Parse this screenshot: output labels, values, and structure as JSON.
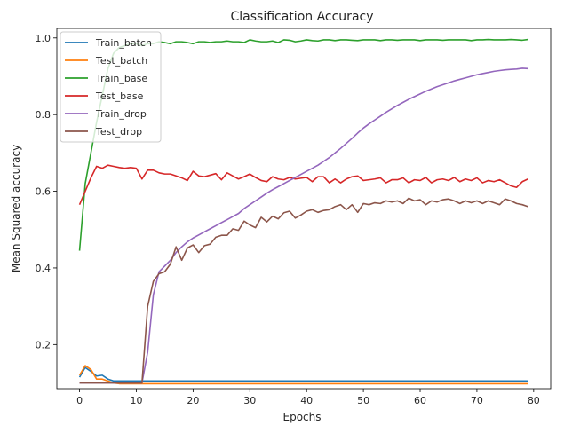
{
  "chart_data": {
    "type": "line",
    "title": "Classification Accuracy",
    "xlabel": "Epochs",
    "ylabel": "Mean Squared accuracy",
    "xlim": [
      -4,
      83
    ],
    "ylim": [
      0.085,
      1.025
    ],
    "xticks": [
      0,
      10,
      20,
      30,
      40,
      50,
      60,
      70,
      80
    ],
    "yticks": [
      0.2,
      0.4,
      0.6,
      0.8,
      1.0
    ],
    "ytick_labels": [
      "0.2",
      "0.4",
      "0.6",
      "0.8",
      "1.0"
    ],
    "legend_position": "upper-left",
    "grid": false,
    "series": [
      {
        "name": "Train_batch",
        "color": "#1f77b4",
        "values": [
          0.115,
          0.14,
          0.13,
          0.118,
          0.12,
          0.11,
          0.105,
          0.105,
          0.105,
          0.105,
          0.105,
          0.105,
          0.105,
          0.105,
          0.105,
          0.105,
          0.105,
          0.105,
          0.105,
          0.105,
          0.105,
          0.105,
          0.105,
          0.105,
          0.105,
          0.105,
          0.105,
          0.105,
          0.105,
          0.105,
          0.105,
          0.105,
          0.105,
          0.105,
          0.105,
          0.105,
          0.105,
          0.105,
          0.105,
          0.105,
          0.105,
          0.105,
          0.105,
          0.105,
          0.105,
          0.105,
          0.105,
          0.105,
          0.105,
          0.105,
          0.105,
          0.105,
          0.105,
          0.105,
          0.105,
          0.105,
          0.105,
          0.105,
          0.105,
          0.105,
          0.105,
          0.105,
          0.105,
          0.105,
          0.105,
          0.105,
          0.105,
          0.105,
          0.105,
          0.105,
          0.105,
          0.105,
          0.105,
          0.105,
          0.105,
          0.105,
          0.105,
          0.105,
          0.105,
          0.105
        ]
      },
      {
        "name": "Test_batch",
        "color": "#ff7f0e",
        "values": [
          0.12,
          0.145,
          0.135,
          0.11,
          0.11,
          0.105,
          0.1,
          0.098,
          0.098,
          0.098,
          0.098,
          0.098,
          0.098,
          0.098,
          0.098,
          0.098,
          0.098,
          0.098,
          0.098,
          0.098,
          0.098,
          0.098,
          0.098,
          0.098,
          0.098,
          0.098,
          0.098,
          0.098,
          0.098,
          0.098,
          0.098,
          0.098,
          0.098,
          0.098,
          0.098,
          0.098,
          0.098,
          0.098,
          0.098,
          0.098,
          0.098,
          0.098,
          0.098,
          0.098,
          0.098,
          0.098,
          0.098,
          0.098,
          0.098,
          0.098,
          0.098,
          0.098,
          0.098,
          0.098,
          0.098,
          0.098,
          0.098,
          0.098,
          0.098,
          0.098,
          0.098,
          0.098,
          0.098,
          0.098,
          0.098,
          0.098,
          0.098,
          0.098,
          0.098,
          0.098,
          0.098,
          0.098,
          0.098,
          0.098,
          0.098,
          0.098,
          0.098,
          0.098,
          0.098,
          0.098
        ]
      },
      {
        "name": "Train_base",
        "color": "#2ca02c",
        "values": [
          0.445,
          0.62,
          0.7,
          0.78,
          0.85,
          0.92,
          0.96,
          0.975,
          0.98,
          0.985,
          0.985,
          0.98,
          0.985,
          0.985,
          0.99,
          0.988,
          0.985,
          0.99,
          0.99,
          0.988,
          0.985,
          0.99,
          0.99,
          0.988,
          0.99,
          0.99,
          0.992,
          0.99,
          0.99,
          0.988,
          0.995,
          0.992,
          0.99,
          0.99,
          0.992,
          0.988,
          0.995,
          0.994,
          0.99,
          0.992,
          0.995,
          0.993,
          0.992,
          0.995,
          0.995,
          0.993,
          0.995,
          0.995,
          0.994,
          0.993,
          0.995,
          0.995,
          0.995,
          0.993,
          0.995,
          0.995,
          0.994,
          0.995,
          0.995,
          0.995,
          0.993,
          0.995,
          0.995,
          0.995,
          0.994,
          0.995,
          0.995,
          0.995,
          0.995,
          0.993,
          0.995,
          0.995,
          0.996,
          0.995,
          0.995,
          0.995,
          0.996,
          0.995,
          0.994,
          0.996
        ]
      },
      {
        "name": "Test_base",
        "color": "#d62728",
        "values": [
          0.565,
          0.6,
          0.635,
          0.665,
          0.66,
          0.668,
          0.665,
          0.662,
          0.66,
          0.662,
          0.66,
          0.632,
          0.655,
          0.655,
          0.648,
          0.645,
          0.645,
          0.64,
          0.635,
          0.628,
          0.652,
          0.64,
          0.638,
          0.642,
          0.646,
          0.63,
          0.648,
          0.64,
          0.632,
          0.638,
          0.645,
          0.636,
          0.628,
          0.625,
          0.638,
          0.632,
          0.63,
          0.636,
          0.632,
          0.634,
          0.636,
          0.625,
          0.638,
          0.638,
          0.622,
          0.632,
          0.622,
          0.632,
          0.638,
          0.64,
          0.628,
          0.63,
          0.632,
          0.635,
          0.622,
          0.63,
          0.63,
          0.635,
          0.622,
          0.63,
          0.628,
          0.636,
          0.622,
          0.63,
          0.632,
          0.628,
          0.636,
          0.625,
          0.632,
          0.628,
          0.635,
          0.622,
          0.628,
          0.625,
          0.63,
          0.622,
          0.614,
          0.61,
          0.625,
          0.632
        ]
      },
      {
        "name": "Train_drop",
        "color": "#9467bd",
        "values": [
          0.1,
          0.1,
          0.1,
          0.1,
          0.1,
          0.1,
          0.1,
          0.1,
          0.1,
          0.1,
          0.1,
          0.1,
          0.18,
          0.33,
          0.39,
          0.405,
          0.42,
          0.44,
          0.455,
          0.468,
          0.478,
          0.486,
          0.494,
          0.502,
          0.51,
          0.518,
          0.526,
          0.534,
          0.542,
          0.555,
          0.565,
          0.575,
          0.585,
          0.595,
          0.604,
          0.612,
          0.62,
          0.628,
          0.636,
          0.644,
          0.652,
          0.66,
          0.668,
          0.678,
          0.688,
          0.7,
          0.712,
          0.725,
          0.738,
          0.752,
          0.765,
          0.776,
          0.786,
          0.796,
          0.806,
          0.815,
          0.824,
          0.832,
          0.84,
          0.847,
          0.854,
          0.861,
          0.867,
          0.873,
          0.878,
          0.883,
          0.888,
          0.892,
          0.896,
          0.9,
          0.904,
          0.907,
          0.91,
          0.913,
          0.915,
          0.917,
          0.918,
          0.919,
          0.921,
          0.92
        ]
      },
      {
        "name": "Test_drop",
        "color": "#8c564b",
        "values": [
          0.1,
          0.1,
          0.1,
          0.1,
          0.1,
          0.1,
          0.1,
          0.1,
          0.1,
          0.1,
          0.1,
          0.1,
          0.3,
          0.365,
          0.385,
          0.39,
          0.41,
          0.455,
          0.42,
          0.452,
          0.46,
          0.44,
          0.458,
          0.462,
          0.48,
          0.485,
          0.485,
          0.502,
          0.498,
          0.522,
          0.512,
          0.505,
          0.532,
          0.52,
          0.535,
          0.528,
          0.544,
          0.548,
          0.53,
          0.538,
          0.548,
          0.552,
          0.545,
          0.55,
          0.552,
          0.56,
          0.565,
          0.552,
          0.565,
          0.545,
          0.568,
          0.565,
          0.57,
          0.568,
          0.575,
          0.572,
          0.575,
          0.568,
          0.582,
          0.575,
          0.578,
          0.565,
          0.575,
          0.572,
          0.578,
          0.58,
          0.575,
          0.568,
          0.575,
          0.57,
          0.575,
          0.568,
          0.575,
          0.57,
          0.565,
          0.58,
          0.575,
          0.568,
          0.565,
          0.56
        ]
      }
    ]
  }
}
